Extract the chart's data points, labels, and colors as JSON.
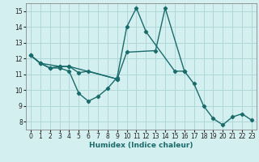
{
  "xlabel": "Humidex (Indice chaleur)",
  "background_color": "#d4efef",
  "grid_color": "#b0d8d8",
  "line_color": "#1a6b6b",
  "xlim": [
    -0.5,
    23.5
  ],
  "ylim": [
    7.5,
    15.5
  ],
  "yticks": [
    8,
    9,
    10,
    11,
    12,
    13,
    14,
    15
  ],
  "xticks": [
    0,
    1,
    2,
    3,
    4,
    5,
    6,
    7,
    8,
    9,
    10,
    11,
    12,
    13,
    14,
    15,
    16,
    17,
    18,
    19,
    20,
    21,
    22,
    23
  ],
  "line1_x": [
    0,
    1,
    2,
    3,
    4,
    5,
    6,
    7,
    8,
    9,
    10,
    11,
    12,
    15,
    16
  ],
  "line1_y": [
    12.2,
    11.7,
    11.4,
    11.4,
    11.2,
    9.8,
    9.3,
    9.6,
    10.1,
    10.8,
    14.0,
    15.2,
    13.7,
    11.2,
    11.2
  ],
  "line2_x": [
    0,
    1,
    2,
    3,
    4,
    5,
    6,
    9
  ],
  "line2_y": [
    12.2,
    11.7,
    11.4,
    11.5,
    11.5,
    11.1,
    11.2,
    10.7
  ],
  "line3_x": [
    0,
    1,
    3,
    4,
    9,
    10,
    13,
    14,
    16,
    17,
    18,
    19,
    20,
    21,
    22,
    23
  ],
  "line3_y": [
    12.2,
    11.7,
    11.5,
    11.5,
    10.7,
    12.4,
    12.5,
    15.2,
    11.2,
    10.4,
    9.0,
    8.2,
    7.8,
    8.3,
    8.5,
    8.1
  ]
}
